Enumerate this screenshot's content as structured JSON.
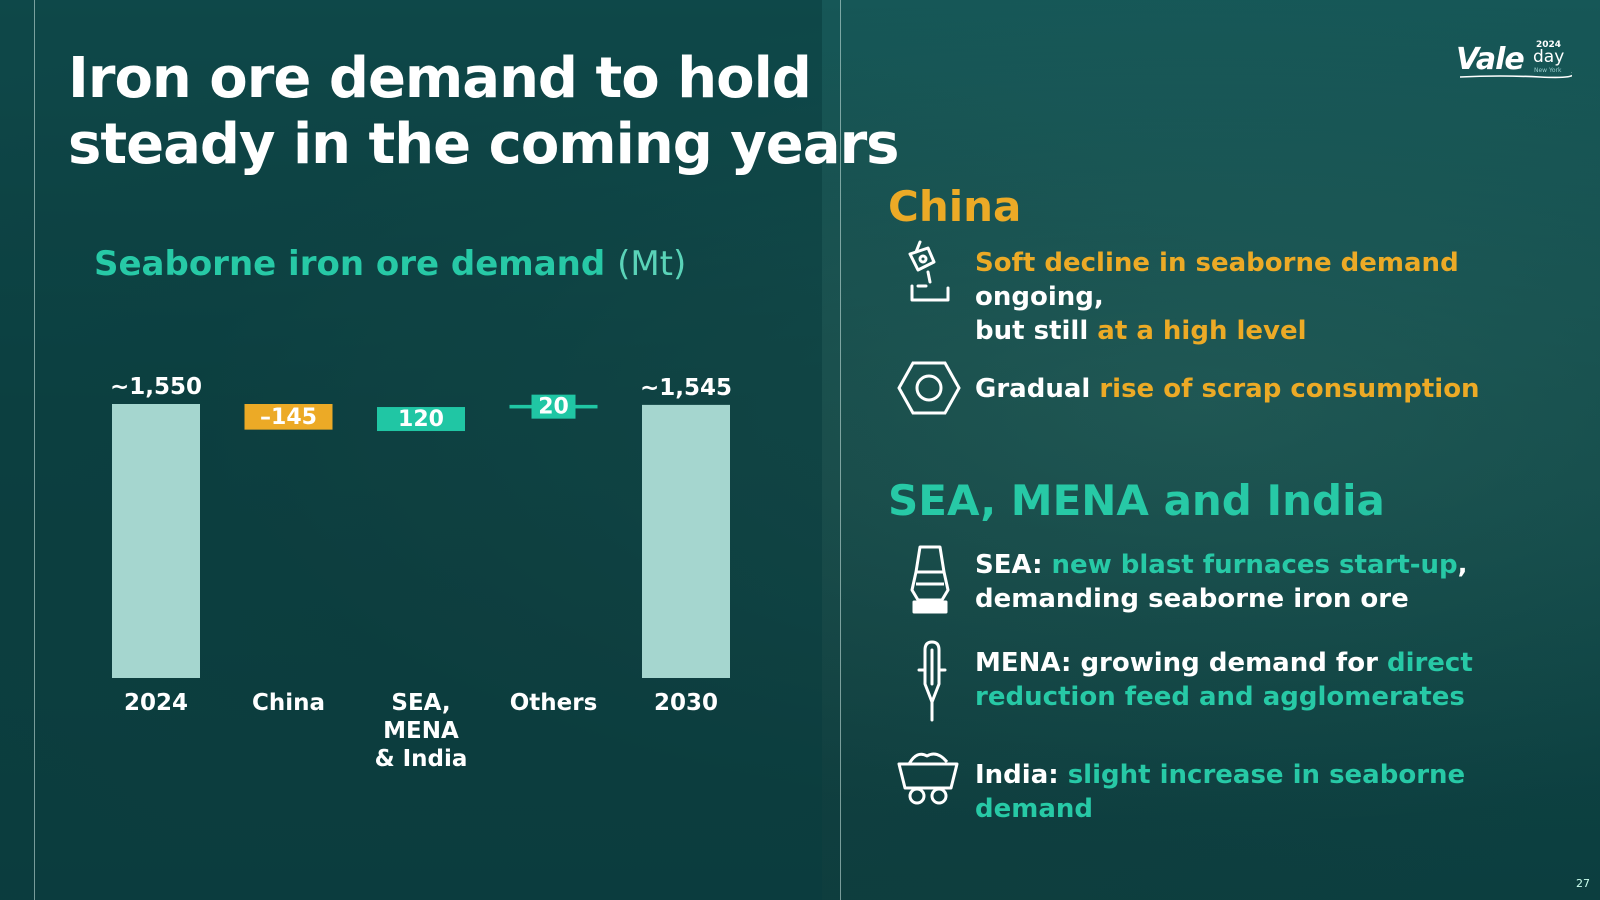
{
  "slide": {
    "title_line1": "Iron ore demand to hold",
    "title_line2": "steady in the coming years",
    "page_number": "27"
  },
  "logo": {
    "brand": "Vale",
    "year": "2024",
    "day": "day",
    "city": "New York"
  },
  "chart_title": {
    "main": "Seaborne iron ore demand",
    "unit": "(Mt)"
  },
  "chart_data": {
    "type": "bar",
    "subtype": "waterfall",
    "title": "Seaborne iron ore demand (Mt)",
    "categories": [
      "2024",
      "China",
      "SEA,\nMENA\n& India",
      "Others",
      "2030"
    ],
    "values": [
      1550,
      -145,
      120,
      20,
      1545
    ],
    "kinds": [
      "total",
      "delta",
      "delta",
      "delta",
      "total"
    ],
    "data_labels": [
      "~1,550",
      "–145",
      "120",
      "20",
      "~1,545"
    ],
    "colors": {
      "total": "#a5d6cf",
      "negative": "#ecaa26",
      "positive": "#20c6a4"
    },
    "grid": false,
    "legend": "none"
  },
  "right_panel": {
    "china": {
      "heading": "China",
      "bullet1": {
        "p1": "Soft decline in seaborne demand",
        "p2": " ongoing,",
        "p3": "but still ",
        "p4": "at a high level"
      },
      "bullet2": {
        "p1": "Gradual ",
        "p2": "rise of scrap consumption"
      }
    },
    "sea": {
      "heading": "SEA, MENA and India",
      "bullet1": {
        "p1": "SEA: ",
        "p2": "new blast furnaces start-up",
        "p3": ",",
        "p4": "demanding seaborne iron ore"
      },
      "bullet2": {
        "p1": "MENA: growing demand for ",
        "p2": "direct",
        "p3": "reduction feed and agglomerates"
      },
      "bullet3": {
        "p1": "India: ",
        "p2": "slight increase in seaborne demand"
      }
    }
  },
  "icons": [
    "crane-hook-icon",
    "hexagon-nut-icon",
    "blast-furnace-icon",
    "electrode-icon",
    "mine-cart-icon"
  ]
}
